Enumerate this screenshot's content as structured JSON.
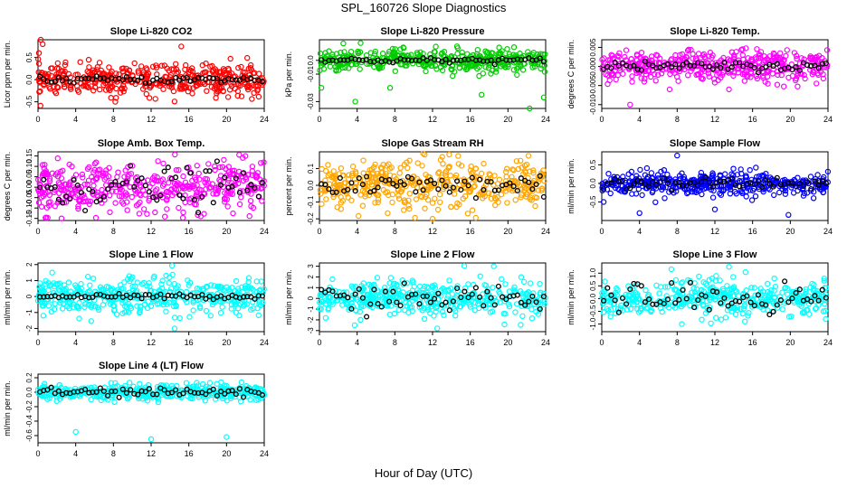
{
  "page": {
    "title": "SPL_160726  Slope Diagnostics",
    "xlabel": "Hour of Day (UTC)"
  },
  "chart_data": [
    {
      "type": "scatter",
      "title": "Slope Li-820 CO2",
      "ylabel": "Licor ppm per min.",
      "color": "#ff0000",
      "xlim": [
        0,
        24
      ],
      "ylim": [
        -0.65,
        0.9
      ],
      "yticks": [
        "-0.5",
        "0.0",
        "0.5"
      ],
      "ytick_values": [
        -0.5,
        0,
        0.5
      ],
      "xticks": [
        0,
        4,
        8,
        12,
        16,
        20,
        24
      ],
      "spread": 0.17,
      "mean_spread": 0.04,
      "outliers": [
        [
          0.1,
          0.6
        ],
        [
          0.3,
          0.9
        ],
        [
          0.5,
          0.8
        ],
        [
          15.2,
          0.75
        ],
        [
          8.2,
          -0.5
        ]
      ]
    },
    {
      "type": "scatter",
      "title": "Slope Li-820 Pressure",
      "ylabel": "kPa per min.",
      "color": "#00cc00",
      "xlim": [
        0,
        24
      ],
      "ylim": [
        -0.035,
        0.015
      ],
      "yticks": [
        "-0.03",
        "-0.01",
        "0.0"
      ],
      "ytick_values": [
        -0.03,
        -0.01,
        0
      ],
      "xticks": [
        0,
        4,
        8,
        12,
        16,
        20,
        24
      ],
      "spread": 0.004,
      "mean_spread": 0.001,
      "outliers": [
        [
          0.2,
          -0.02
        ],
        [
          3.8,
          -0.03
        ],
        [
          7.5,
          -0.02
        ],
        [
          17.2,
          -0.025
        ],
        [
          22.3,
          -0.035
        ],
        [
          23.8,
          -0.027
        ]
      ]
    },
    {
      "type": "scatter",
      "title": "Slope Li-820 Temp.",
      "ylabel": "degrees C per min.",
      "color": "#ff00ff",
      "xlim": [
        0,
        24
      ],
      "ylim": [
        -0.011,
        0.007
      ],
      "yticks": [
        "-0.010",
        "-0.005",
        "0.000",
        "0.005"
      ],
      "ytick_values": [
        -0.01,
        -0.005,
        0,
        0.005
      ],
      "xticks": [
        0,
        4,
        8,
        12,
        16,
        20,
        24
      ],
      "spread": 0.002,
      "mean_spread": 0.0006,
      "outliers": [
        [
          3.0,
          -0.01
        ],
        [
          7.2,
          -0.006
        ],
        [
          13.5,
          -0.006
        ]
      ]
    },
    {
      "type": "scatter",
      "title": "Slope Amb. Box Temp.",
      "ylabel": "degrees C per min.",
      "color": "#ff00ff",
      "xlim": [
        0,
        24
      ],
      "ylim": [
        -0.16,
        0.17
      ],
      "yticks": [
        "-0.15",
        "-0.10",
        "-0.05",
        "0.00",
        "0.05",
        "0.10",
        "0.15"
      ],
      "ytick_values": [
        -0.15,
        -0.1,
        -0.05,
        0,
        0.05,
        0.1,
        0.15
      ],
      "xticks": [
        0,
        4,
        8,
        12,
        16,
        20,
        24
      ],
      "spread": 0.06,
      "mean_spread": 0.05,
      "outliers": [
        [
          22.0,
          0.15
        ],
        [
          2.5,
          -0.15
        ]
      ]
    },
    {
      "type": "scatter",
      "title": "Slope Gas Stream RH",
      "ylabel": "percent per min.",
      "color": "#ffa500",
      "xlim": [
        0,
        24
      ],
      "ylim": [
        -0.21,
        0.2
      ],
      "yticks": [
        "-0.2",
        "-0.1",
        "0.0",
        "0.1"
      ],
      "ytick_values": [
        -0.2,
        -0.1,
        0,
        0.1
      ],
      "xticks": [
        0,
        4,
        8,
        12,
        16,
        20,
        24
      ],
      "spread": 0.07,
      "mean_spread": 0.04,
      "outliers": [
        [
          12.0,
          -0.2
        ],
        [
          11.0,
          0.19
        ]
      ]
    },
    {
      "type": "scatter",
      "title": "Slope Sample Flow",
      "ylabel": "ml/min per min.",
      "color": "#0000ff",
      "xlim": [
        0,
        24
      ],
      "ylim": [
        -1.0,
        0.85
      ],
      "yticks": [
        "-0.5",
        "0.0",
        "0.5"
      ],
      "ytick_values": [
        -0.5,
        0,
        0.5
      ],
      "xticks": [
        0,
        4,
        8,
        12,
        16,
        20,
        24
      ],
      "spread": 0.15,
      "mean_spread": 0.08,
      "outliers": [
        [
          0.2,
          -0.5
        ],
        [
          4.0,
          -0.8
        ],
        [
          8.0,
          0.75
        ],
        [
          12.0,
          -0.7
        ],
        [
          19.8,
          -0.85
        ]
      ]
    },
    {
      "type": "scatter",
      "title": "Slope Line 1 Flow",
      "ylabel": "ml/min per min.",
      "color": "#00ffff",
      "xlim": [
        0,
        24
      ],
      "ylim": [
        -2.2,
        2.1
      ],
      "yticks": [
        "-2",
        "-1",
        "0",
        "1",
        "2"
      ],
      "ytick_values": [
        -2,
        -1,
        0,
        1,
        2
      ],
      "xticks": [
        0,
        4,
        8,
        12,
        16,
        20,
        24
      ],
      "spread": 0.55,
      "mean_spread": 0.08,
      "outliers": [
        [
          14.5,
          -2.0
        ],
        [
          1.5,
          1.5
        ]
      ]
    },
    {
      "type": "scatter",
      "title": "Slope Line 2 Flow",
      "ylabel": "ml/min per min.",
      "color": "#00ffff",
      "xlim": [
        0,
        24
      ],
      "ylim": [
        -3.1,
        3.3
      ],
      "yticks": [
        "-3",
        "-2",
        "-1",
        "0",
        "1",
        "2",
        "3"
      ],
      "ytick_values": [
        -3,
        -2,
        -1,
        0,
        1,
        2,
        3
      ],
      "xticks": [
        0,
        4,
        8,
        12,
        16,
        20,
        24
      ],
      "spread": 0.8,
      "mean_spread": 0.6,
      "outliers": [
        [
          12.5,
          -2.8
        ],
        [
          18.5,
          3.0
        ]
      ]
    },
    {
      "type": "scatter",
      "title": "Slope Line 3 Flow",
      "ylabel": "ml/min per min.",
      "color": "#00ffff",
      "xlim": [
        0,
        24
      ],
      "ylim": [
        -1.3,
        1.4
      ],
      "yticks": [
        "-1.0",
        "-0.5",
        "0.0",
        "0.5",
        "1.0"
      ],
      "ytick_values": [
        -1,
        -0.5,
        0,
        0.5,
        1
      ],
      "xticks": [
        0,
        4,
        8,
        12,
        16,
        20,
        24
      ],
      "spread": 0.35,
      "mean_spread": 0.3,
      "outliers": [
        [
          13.5,
          1.25
        ],
        [
          8.5,
          -1.0
        ]
      ]
    },
    {
      "type": "scatter",
      "title": "Slope Line 4 (LT) Flow",
      "ylabel": "ml/min per min.",
      "color": "#00ffff",
      "xlim": [
        0,
        24
      ],
      "ylim": [
        -0.7,
        0.25
      ],
      "yticks": [
        "-0.6",
        "-0.4",
        "-0.2",
        "0.0",
        "0.2"
      ],
      "ytick_values": [
        -0.6,
        -0.4,
        -0.2,
        0,
        0.2
      ],
      "xticks": [
        0,
        4,
        8,
        12,
        16,
        20,
        24
      ],
      "spread": 0.05,
      "mean_spread": 0.03,
      "outliers": [
        [
          4.0,
          -0.55
        ],
        [
          12.0,
          -0.65
        ],
        [
          20.0,
          -0.62
        ]
      ]
    }
  ]
}
